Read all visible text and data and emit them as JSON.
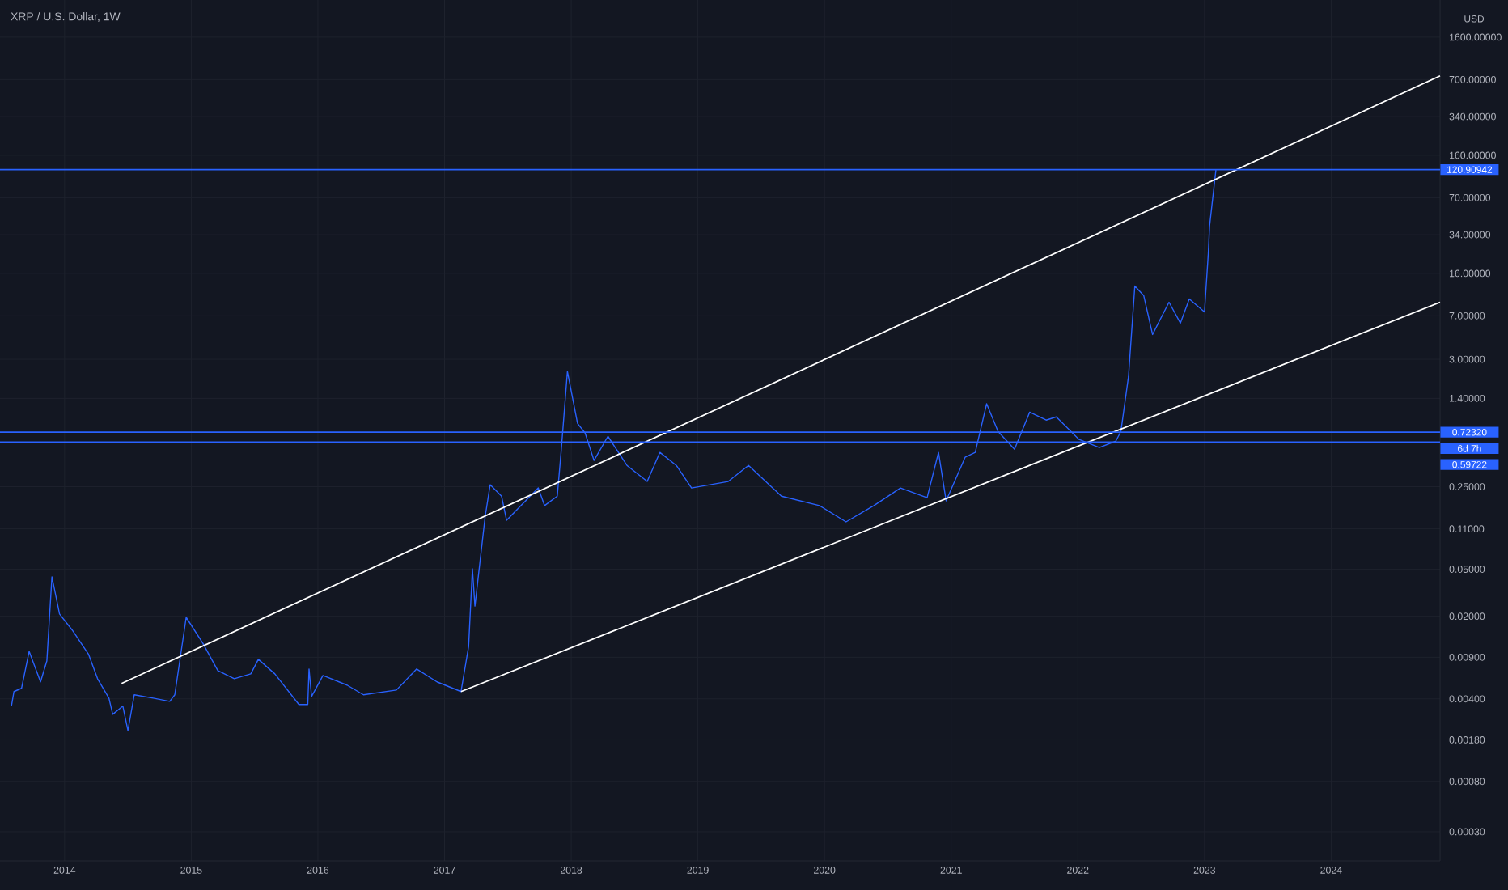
{
  "chart_data": {
    "type": "line",
    "title": "XRP / U.S. Dollar, 1W",
    "ylabel": "USD",
    "log": "y",
    "grid": true,
    "xlim": [
      2013.49,
      2024.86
    ],
    "ylim": [
      0.00017,
      3300
    ],
    "xticks": [
      2014,
      2015,
      2016,
      2017,
      2018,
      2019,
      2020,
      2021,
      2022,
      2023,
      2024
    ],
    "yticks": [
      {
        "value": 1600,
        "label": "1600.00000"
      },
      {
        "value": 700,
        "label": "700.00000"
      },
      {
        "value": 340,
        "label": "340.00000"
      },
      {
        "value": 160,
        "label": "160.00000"
      },
      {
        "value": 70,
        "label": "70.00000"
      },
      {
        "value": 34,
        "label": "34.00000"
      },
      {
        "value": 16,
        "label": "16.00000"
      },
      {
        "value": 7,
        "label": "7.00000"
      },
      {
        "value": 3,
        "label": "3.00000"
      },
      {
        "value": 1.4,
        "label": "1.40000"
      },
      {
        "value": 0.25,
        "label": "0.25000"
      },
      {
        "value": 0.11,
        "label": "0.11000"
      },
      {
        "value": 0.05,
        "label": "0.05000"
      },
      {
        "value": 0.02,
        "label": "0.02000"
      },
      {
        "value": 0.009,
        "label": "0.00900"
      },
      {
        "value": 0.004,
        "label": "0.00400"
      },
      {
        "value": 0.0018,
        "label": "0.00180"
      },
      {
        "value": 0.0008,
        "label": "0.00080"
      },
      {
        "value": 0.0003,
        "label": "0.00030"
      }
    ],
    "series": [
      {
        "color": "#2962ff",
        "x": [
          2013.58,
          2013.6,
          2013.66,
          2013.72,
          2013.81,
          2013.86,
          2013.9,
          2013.96,
          2014.06,
          2014.19,
          2014.26,
          2014.35,
          2014.38,
          2014.46,
          2014.5,
          2014.55,
          2014.7,
          2014.83,
          2014.87,
          2014.96,
          2015.09,
          2015.21,
          2015.34,
          2015.47,
          2015.53,
          2015.66,
          2015.85,
          2015.92,
          2015.93,
          2015.95,
          2016.04,
          2016.23,
          2016.36,
          2016.62,
          2016.78,
          2016.94,
          2017.13,
          2017.19,
          2017.22,
          2017.24,
          2017.32,
          2017.36,
          2017.45,
          2017.49,
          2017.64,
          2017.74,
          2017.79,
          2017.89,
          2017.92,
          2017.97,
          2018.05,
          2018.11,
          2018.18,
          2018.29,
          2018.44,
          2018.6,
          2018.7,
          2018.83,
          2018.95,
          2019.24,
          2019.4,
          2019.66,
          2019.96,
          2020.17,
          2020.39,
          2020.6,
          2020.81,
          2020.9,
          2020.96,
          2021.11,
          2021.19,
          2021.28,
          2021.37,
          2021.5,
          2021.62,
          2021.75,
          2021.83,
          2022.01,
          2022.17,
          2022.3,
          2022.34,
          2022.4,
          2022.45,
          2022.52,
          2022.59,
          2022.72,
          2022.81,
          2022.88,
          2023.0,
          2023.03,
          2023.04,
          2023.09
        ],
        "values": [
          0.00347,
          0.00461,
          0.00491,
          0.0101,
          0.00557,
          0.00839,
          0.0432,
          0.0209,
          0.0153,
          0.0095,
          0.00593,
          0.00406,
          0.00296,
          0.00347,
          0.00216,
          0.00433,
          0.00406,
          0.00381,
          0.00433,
          0.0196,
          0.0119,
          0.00694,
          0.00593,
          0.00651,
          0.00865,
          0.00651,
          0.00358,
          0.00358,
          0.00716,
          0.00419,
          0.00631,
          0.00523,
          0.00433,
          0.00475,
          0.00716,
          0.00557,
          0.00461,
          0.0111,
          0.0505,
          0.0244,
          0.138,
          0.26,
          0.208,
          0.13,
          0.19,
          0.244,
          0.173,
          0.208,
          0.488,
          2.36,
          0.859,
          0.711,
          0.417,
          0.668,
          0.379,
          0.277,
          0.488,
          0.379,
          0.244,
          0.277,
          0.379,
          0.208,
          0.173,
          0.126,
          0.173,
          0.244,
          0.202,
          0.488,
          0.19,
          0.444,
          0.488,
          1.26,
          0.734,
          0.519,
          1.07,
          0.916,
          0.975,
          0.628,
          0.536,
          0.608,
          0.734,
          2.14,
          12.5,
          10.4,
          4.86,
          9.12,
          6.07,
          9.72,
          7.55,
          23.5,
          40.1,
          120
        ]
      },
      {
        "color": "#ffffff",
        "x": [
          2014.45,
          2024.86
        ],
        "values": [
          0.0054,
          752
        ]
      },
      {
        "color": "#ffffff",
        "x": [
          2017.13,
          2024.86
        ],
        "values": [
          0.00461,
          9.12
        ]
      }
    ],
    "ref_lines": [
      {
        "axis": "y",
        "value": 120.90942,
        "label": "120.90942",
        "color": "#2962ff"
      },
      {
        "axis": "y",
        "value": 0.7232,
        "label": "0.72320",
        "color": "#2962ff"
      },
      {
        "axis": "y",
        "value": 0.59722,
        "label": "0.59722",
        "color": "#2962ff"
      }
    ],
    "annotations": [
      "6d 7h"
    ]
  }
}
